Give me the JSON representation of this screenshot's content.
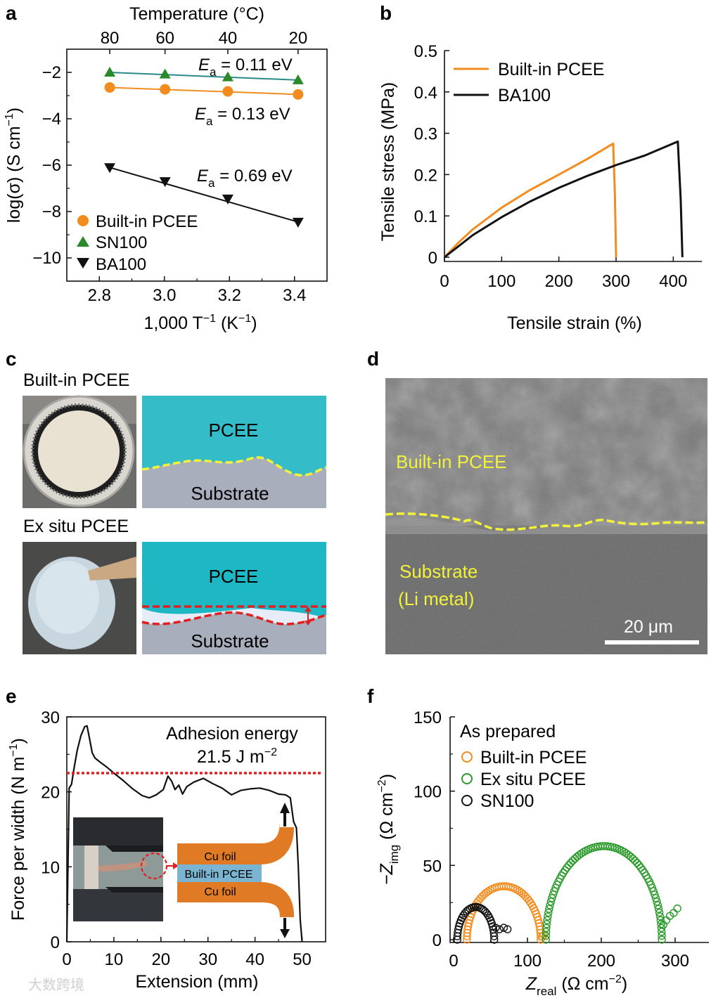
{
  "panels": {
    "a": {
      "letter": "a",
      "chart_data": {
        "type": "scatter",
        "title": "",
        "xlabel": "1,000 T",
        "xlabel_sup": "−1",
        "xlabel_unit": "(K",
        "xlabel_unit_sup": "−1",
        "xlabel_close": ")",
        "ylabel": "log(σ) (S cm",
        "ylabel_sup": "−1",
        "ylabel_close": ")",
        "top_axis_label": "Temperature (°C)",
        "xlim": [
          2.7,
          3.5
        ],
        "ylim": [
          -11,
          -1
        ],
        "x_ticks": [
          2.8,
          3.0,
          3.2,
          3.4
        ],
        "x_tick_labels": [
          "2.8",
          "3.0",
          "3.2",
          "3.4"
        ],
        "y_ticks": [
          -2,
          -4,
          -6,
          -8,
          -10
        ],
        "y_tick_labels": [
          "−2",
          "−4",
          "−6",
          "−8",
          "−10"
        ],
        "top_ticks": [
          {
            "label": "80",
            "x": 2.832
          },
          {
            "label": "60",
            "x": 3.002
          },
          {
            "label": "40",
            "x": 3.195
          },
          {
            "label": "20",
            "x": 3.411
          }
        ],
        "series": [
          {
            "name": "Built-in PCEE",
            "color": "#f28c1e",
            "marker": "circle",
            "x": [
              2.832,
              3.002,
              3.195,
              3.411
            ],
            "y": [
              -2.65,
              -2.73,
              -2.82,
              -2.95
            ]
          },
          {
            "name": "SN100",
            "color": "#2a8a2a",
            "marker": "triangle-up",
            "x": [
              2.832,
              3.002,
              3.195,
              3.411
            ],
            "y": [
              -2.0,
              -2.08,
              -2.2,
              -2.33
            ]
          },
          {
            "name": "BA100",
            "color": "#111111",
            "marker": "triangle-down",
            "x": [
              2.832,
              3.002,
              3.195,
              3.411
            ],
            "y": [
              -6.1,
              -6.7,
              -7.45,
              -8.45
            ]
          }
        ],
        "fit_line_colors": [
          "#f28c1e",
          "#2a8a8a",
          "#111111"
        ],
        "annotations": [
          {
            "prefix": "E",
            "sub": "a",
            "text": " = 0.11 eV"
          },
          {
            "prefix": "E",
            "sub": "a",
            "text": " = 0.13 eV"
          },
          {
            "prefix": "E",
            "sub": "a",
            "text": " = 0.69 eV"
          }
        ],
        "legend_position": "bottom-left"
      }
    },
    "b": {
      "letter": "b",
      "chart_data": {
        "type": "line",
        "title": "",
        "xlabel": "Tensile strain (%)",
        "ylabel": "Tensile stress (MPa)",
        "xlim": [
          0,
          450
        ],
        "ylim": [
          0,
          0.5
        ],
        "x_ticks": [
          0,
          100,
          200,
          300,
          400
        ],
        "x_tick_labels": [
          "0",
          "100",
          "200",
          "300",
          "400"
        ],
        "y_ticks": [
          0,
          0.1,
          0.2,
          0.3,
          0.4,
          0.5
        ],
        "y_tick_labels": [
          "0",
          "0.1",
          "0.2",
          "0.3",
          "0.4",
          "0.5"
        ],
        "series": [
          {
            "name": "Built-in PCEE",
            "color": "#f28c1e",
            "x": [
              0,
              25,
              50,
              100,
              150,
              200,
              250,
              295,
              298,
              300
            ],
            "y": [
              0,
              0.036,
              0.068,
              0.12,
              0.163,
              0.2,
              0.238,
              0.275,
              0.15,
              0.0
            ]
          },
          {
            "name": "BA100",
            "color": "#111111",
            "x": [
              0,
              50,
              100,
              150,
              200,
              250,
              300,
              350,
              408,
              413,
              416
            ],
            "y": [
              0,
              0.054,
              0.097,
              0.135,
              0.168,
              0.197,
              0.223,
              0.246,
              0.28,
              0.14,
              0.0
            ]
          }
        ],
        "legend_position": "top-left"
      }
    },
    "c": {
      "letter": "c",
      "top_title": "Built-in PCEE",
      "bottom_title": "Ex situ PCEE",
      "layer_top": "PCEE",
      "layer_bottom": "Substrate",
      "layer_top_2": "PCEE",
      "layer_bottom_2": "Substrate",
      "colors": {
        "pcee": "#34bcc8",
        "substrate": "#a9aebd",
        "interface_good": "#f2f23a",
        "interface_bad": "#e02020"
      }
    },
    "d": {
      "letter": "d",
      "label_upper": "Built-in PCEE",
      "label_lower_1": "Substrate",
      "label_lower_2": "(Li metal)",
      "scale_bar": "20 μm",
      "colors": {
        "label": "#f2f23a"
      }
    },
    "e": {
      "letter": "e",
      "chart_data": {
        "type": "line",
        "title": "",
        "xlabel": "Extension (mm)",
        "ylabel": "Force per width (N m",
        "ylabel_sup": "−1",
        "ylabel_close": ")",
        "xlim": [
          0,
          55
        ],
        "ylim": [
          0,
          30
        ],
        "x_ticks": [
          0,
          10,
          20,
          30,
          40,
          50
        ],
        "x_tick_labels": [
          "0",
          "10",
          "20",
          "30",
          "40",
          "50"
        ],
        "y_ticks": [
          0,
          10,
          20,
          30
        ],
        "y_tick_labels": [
          "0",
          "10",
          "20",
          "30"
        ],
        "series": [
          {
            "name": "",
            "color": "#111111",
            "x": [
              0,
              0.5,
              1.0,
              1.5,
              2.2,
              3.0,
              3.8,
              4.3,
              4.8,
              5.4,
              6.0,
              7.0,
              8.5,
              10,
              12,
              14,
              16,
              17.5,
              19,
              20.5,
              21.5,
              22.3,
              23,
              23.8,
              24.6,
              25.5,
              27,
              29,
              31,
              33,
              35,
              37,
              39,
              41,
              43,
              45,
              46.5,
              47.5,
              48.2,
              48.8,
              49.2,
              49.6,
              50.0
            ],
            "y": [
              0,
              20.5,
              21,
              23,
              25.5,
              27.5,
              28.7,
              28.8,
              27.2,
              25.2,
              24.5,
              24,
              23.3,
              22.5,
              21.5,
              20.4,
              19.5,
              19.2,
              19.6,
              20.3,
              22.1,
              21.4,
              20.3,
              20.9,
              19.7,
              20.7,
              21.3,
              21.8,
              21.1,
              20.5,
              19.6,
              20.2,
              20.4,
              20.5,
              20.2,
              19.7,
              19.6,
              19.2,
              16,
              15.2,
              10,
              3,
              0
            ]
          },
          {
            "name": "",
            "color": "#e02020",
            "style": "dotted",
            "x": [
              0,
              54
            ],
            "y": [
              22.5,
              22.5
            ]
          }
        ],
        "annotation_line1": "Adhesion energy",
        "annotation_value": "21.5 J m",
        "annotation_sup": "−2",
        "inset_labels": {
          "top": "Cu foil",
          "middle": "Built-in PCEE",
          "bottom": "Cu foil"
        },
        "colors": {
          "foil": "#e07a24",
          "pcee": "#7ab4d0",
          "ring": "#e02020"
        }
      }
    },
    "f": {
      "letter": "f",
      "chart_data": {
        "type": "scatter",
        "title": "",
        "xlabel": "Z",
        "xlabel_sub": "real",
        "xlabel_unit": " (Ω cm",
        "xlabel_unit_sup": "−2",
        "xlabel_close": ")",
        "ylabel": "−Z",
        "ylabel_sub": "img",
        "ylabel_unit": " (Ω cm",
        "ylabel_unit_sup": "−2",
        "ylabel_close": ")",
        "xlim": [
          0,
          350
        ],
        "ylim": [
          0,
          150
        ],
        "x_ticks": [
          0,
          100,
          200,
          300
        ],
        "x_tick_labels": [
          "0",
          "100",
          "200",
          "300"
        ],
        "y_ticks": [
          0,
          50,
          100,
          150
        ],
        "y_tick_labels": [
          "0",
          "50",
          "100",
          "150"
        ],
        "legend_title": "As prepared",
        "series": [
          {
            "name": "Built-in PCEE",
            "color": "#f28c1e",
            "marker": "open-circle",
            "arc": {
              "x_start": 18,
              "x_end": 118,
              "y_peak": 36,
              "n": 50
            },
            "tail": [
              [
                120,
                2
              ],
              [
                122,
                3
              ]
            ]
          },
          {
            "name": "Ex situ PCEE",
            "color": "#2a9a2a",
            "marker": "open-circle",
            "arc": {
              "x_start": 125,
              "x_end": 282,
              "y_peak": 63,
              "n": 75
            },
            "tail": [
              [
                284,
                10
              ],
              [
                288,
                13
              ],
              [
                293,
                16
              ],
              [
                298,
                18
              ],
              [
                303,
                21
              ]
            ]
          },
          {
            "name": "SN100",
            "color": "#111111",
            "marker": "open-circle",
            "arc": {
              "x_start": 5,
              "x_end": 55,
              "y_peak": 22,
              "n": 30
            },
            "tail": [
              [
                57,
                8
              ],
              [
                62,
                7
              ],
              [
                68,
                8
              ],
              [
                73,
                7
              ]
            ]
          }
        ],
        "legend_position": "top-left"
      }
    }
  },
  "watermark": "大数跨境"
}
